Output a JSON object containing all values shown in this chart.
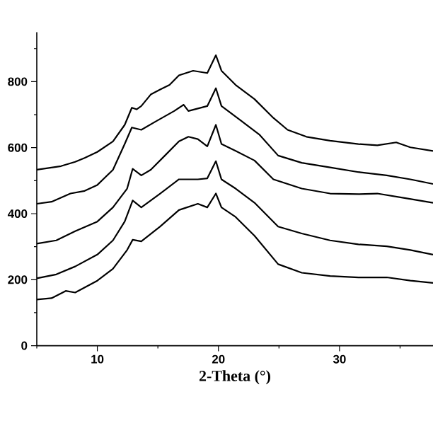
{
  "chart_data": {
    "type": "line",
    "xlabel": "2-Theta (°)",
    "xlim": [
      5,
      37.72
    ],
    "ylim": [
      0,
      950
    ],
    "xticks": [
      {
        "value": 5,
        "label": null
      },
      10,
      {
        "value": 15,
        "label": null
      },
      20,
      {
        "value": 25,
        "label": null
      },
      30,
      {
        "value": 35,
        "label": null
      }
    ],
    "yticks": [
      0,
      {
        "value": 100,
        "label": null
      },
      200,
      {
        "value": 300,
        "label": null
      },
      400,
      {
        "value": 500,
        "label": null
      },
      600,
      {
        "value": 700,
        "label": null
      },
      800,
      {
        "value": 900,
        "label": null
      }
    ],
    "grid": false,
    "marker": "none",
    "line_style": "solid",
    "series": [
      {
        "color": "#000000",
        "x": [
          5.0,
          7.0,
          8.17,
          8.95,
          10,
          11.29,
          12.26,
          12.85,
          13.24,
          13.63,
          14.41,
          15.19,
          15.96,
          16.74,
          17.91,
          19.08,
          19.79,
          20.25,
          21.42,
          22.98,
          24.54,
          25.71,
          27.27,
          29.22,
          31.56,
          33.12,
          34.68,
          35.85,
          37.72
        ],
        "values": [
          533,
          544,
          557,
          569,
          587,
          619,
          669,
          721,
          716,
          726,
          761,
          776,
          790,
          819,
          833,
          826,
          880,
          833,
          790,
          747,
          690,
          654,
          633,
          621,
          611,
          607,
          616,
          601,
          590
        ]
      },
      {
        "color": "#000000",
        "x": [
          5.0,
          6.22,
          7.78,
          8.95,
          10,
          11.29,
          12.26,
          12.85,
          13.63,
          14.8,
          16.35,
          17.13,
          17.52,
          19.08,
          19.79,
          20.25,
          21.81,
          23.37,
          24.93,
          26.88,
          29.22,
          31.56,
          33.9,
          35.85,
          37.72
        ],
        "values": [
          430,
          436,
          461,
          469,
          487,
          533,
          611,
          661,
          654,
          679,
          711,
          730,
          711,
          726,
          780,
          726,
          683,
          640,
          576,
          554,
          540,
          526,
          516,
          504,
          490
        ]
      },
      {
        "color": "#000000",
        "x": [
          5.0,
          6.61,
          8.17,
          10,
          11.29,
          12.46,
          12.92,
          13.63,
          14.41,
          15.58,
          16.74,
          17.52,
          18.3,
          19.08,
          19.79,
          20.25,
          21.42,
          22.98,
          24.54,
          26.88,
          29.22,
          31.56,
          33.12,
          35.46,
          37.72
        ],
        "values": [
          309,
          319,
          347,
          376,
          419,
          476,
          536,
          516,
          533,
          576,
          619,
          633,
          626,
          604,
          669,
          611,
          590,
          561,
          504,
          476,
          461,
          459,
          461,
          447,
          433
        ]
      },
      {
        "color": "#000000",
        "x": [
          5.0,
          6.61,
          8.17,
          10,
          11.29,
          12.26,
          12.92,
          13.63,
          15.19,
          16.74,
          18.3,
          19.08,
          19.79,
          20.25,
          21.42,
          22.98,
          24.93,
          26.88,
          29.22,
          31.56,
          33.9,
          35.85,
          37.72
        ],
        "values": [
          204,
          216,
          240,
          276,
          319,
          376,
          440,
          419,
          461,
          504,
          504,
          507,
          559,
          504,
          476,
          433,
          361,
          340,
          319,
          307,
          301,
          290,
          276
        ]
      },
      {
        "color": "#000000",
        "x": [
          5.0,
          6.22,
          7.39,
          8.17,
          10,
          11.29,
          12.46,
          12.92,
          13.63,
          15.19,
          16.74,
          18.3,
          19.08,
          19.79,
          20.25,
          21.42,
          22.98,
          24.93,
          26.88,
          29.22,
          31.56,
          33.9,
          35.85,
          37.72
        ],
        "values": [
          140,
          144,
          166,
          161,
          197,
          233,
          290,
          321,
          316,
          361,
          411,
          430,
          419,
          461,
          419,
          390,
          333,
          247,
          221,
          211,
          207,
          207,
          197,
          190
        ]
      }
    ]
  }
}
